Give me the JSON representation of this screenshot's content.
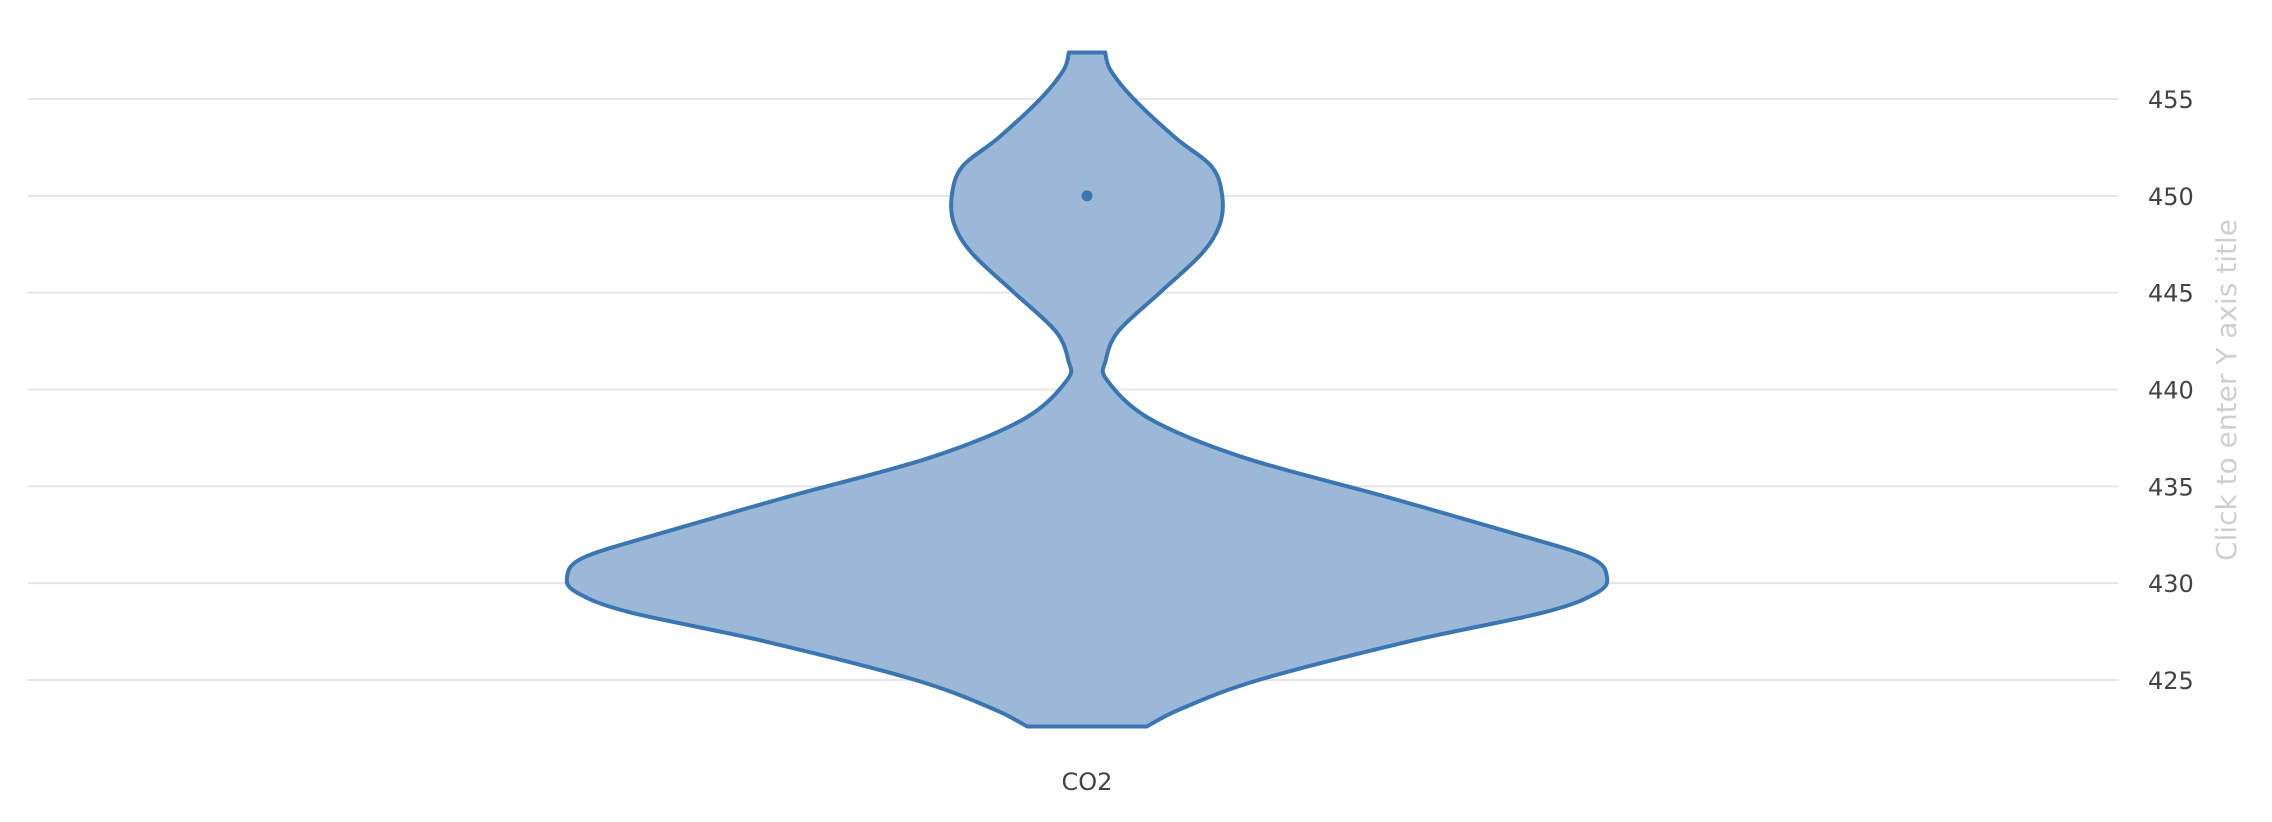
{
  "chart_data": {
    "type": "violin",
    "categories": [
      "CO2"
    ],
    "series": [
      {
        "category": "CO2",
        "y_min": 422.6,
        "y_max": 457.4,
        "median": 450,
        "density_profile": [
          {
            "y": 422.6,
            "half_width": 0.115
          },
          {
            "y": 423.5,
            "half_width": 0.18
          },
          {
            "y": 425.0,
            "half_width": 0.33
          },
          {
            "y": 427.0,
            "half_width": 0.62
          },
          {
            "y": 428.5,
            "half_width": 0.88
          },
          {
            "y": 429.5,
            "half_width": 0.98
          },
          {
            "y": 430.3,
            "half_width": 1.0
          },
          {
            "y": 431.3,
            "half_width": 0.97
          },
          {
            "y": 432.5,
            "half_width": 0.83
          },
          {
            "y": 434.5,
            "half_width": 0.57
          },
          {
            "y": 436.5,
            "half_width": 0.3
          },
          {
            "y": 438.5,
            "half_width": 0.12
          },
          {
            "y": 440.5,
            "half_width": 0.038
          },
          {
            "y": 441.5,
            "half_width": 0.036
          },
          {
            "y": 443.0,
            "half_width": 0.06
          },
          {
            "y": 445.0,
            "half_width": 0.14
          },
          {
            "y": 447.0,
            "half_width": 0.22
          },
          {
            "y": 448.5,
            "half_width": 0.255
          },
          {
            "y": 450.0,
            "half_width": 0.26
          },
          {
            "y": 451.5,
            "half_width": 0.24
          },
          {
            "y": 453.0,
            "half_width": 0.17
          },
          {
            "y": 455.0,
            "half_width": 0.09
          },
          {
            "y": 456.5,
            "half_width": 0.045
          },
          {
            "y": 457.4,
            "half_width": 0.035
          }
        ]
      }
    ],
    "y_axis": {
      "ticks": [
        425,
        430,
        435,
        440,
        445,
        450,
        455
      ],
      "range": [
        420,
        458
      ],
      "side": "right",
      "title_placeholder": "Click to enter Y axis title"
    },
    "grid": true,
    "colors": {
      "fill": "#9bb9d6",
      "line": "#3b76b3",
      "grid": "#e6e6e6"
    }
  }
}
